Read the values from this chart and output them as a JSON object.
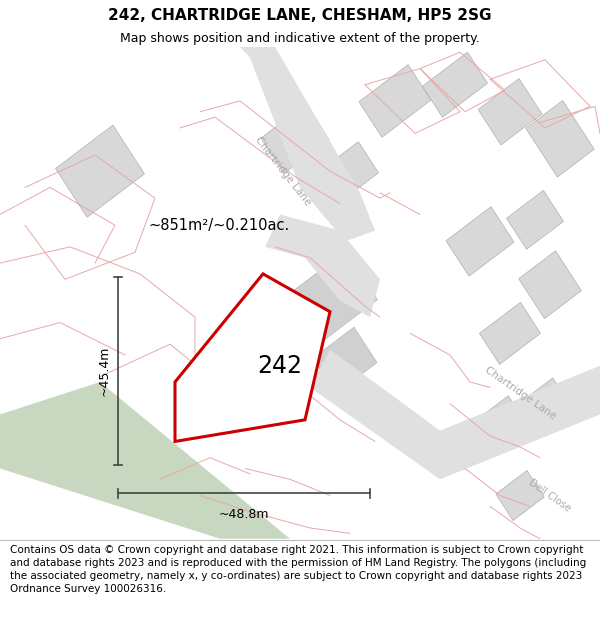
{
  "title": "242, CHARTRIDGE LANE, CHESHAM, HP5 2SG",
  "subtitle": "Map shows position and indicative extent of the property.",
  "footer": "Contains OS data © Crown copyright and database right 2021. This information is subject to Crown copyright and database rights 2023 and is reproduced with the permission of HM Land Registry. The polygons (including the associated geometry, namely x, y co-ordinates) are subject to Crown copyright and database rights 2023 Ordnance Survey 100026316.",
  "plot_outline_color": "#cc0000",
  "green_area_color": "#c8d8c0",
  "road_fill": "#e0e0e0",
  "building_fill": "#d8d8d8",
  "building_edge": "#b0b0b0",
  "pink_line": "#e8a8a8",
  "road_label_color": "#aaaaaa",
  "label_242": "242",
  "area_label": "~851m²/~0.210ac.",
  "dim_height": "~45.4m",
  "dim_width": "~48.8m",
  "title_fontsize": 11,
  "subtitle_fontsize": 9,
  "footer_fontsize": 7.5
}
